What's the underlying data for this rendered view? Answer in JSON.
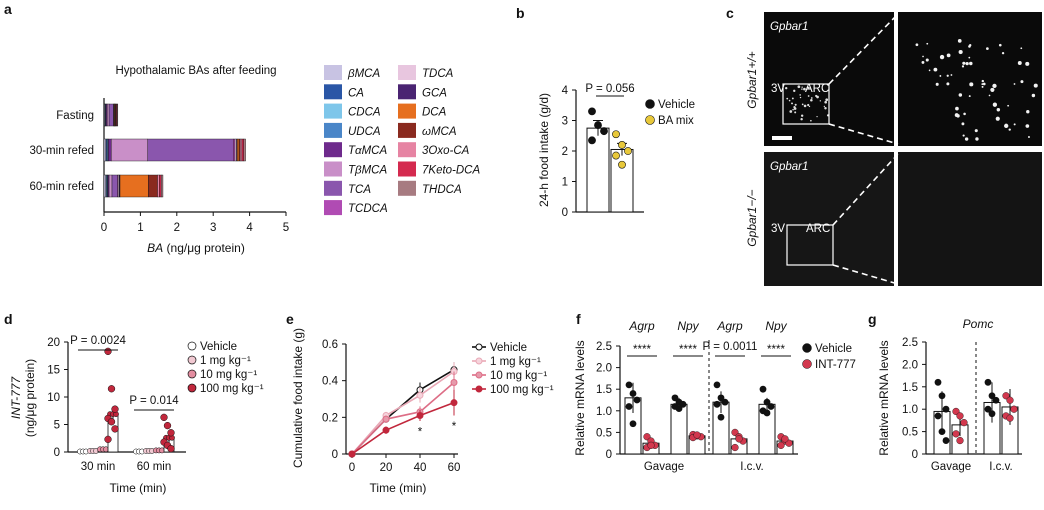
{
  "panel_labels": [
    "a",
    "b",
    "c",
    "d",
    "e",
    "f",
    "g"
  ],
  "chart_data": [
    {
      "panel": "a",
      "type": "bar",
      "orientation": "horizontal",
      "stacked": true,
      "title": "Hypothalamic BAs after feeding",
      "xlabel_italic": "BA",
      "xlabel_rest": " (ng/μg protein)",
      "xlim": [
        0,
        5
      ],
      "xticks": [
        "0",
        "1",
        "2",
        "3",
        "4",
        "5"
      ],
      "categories": [
        "Fasting",
        "30-min refed",
        "60-min refed"
      ],
      "series": [
        {
          "name": "βMCA",
          "color": "#c8c3e3",
          "values": [
            0.02,
            0.05,
            0.05
          ]
        },
        {
          "name": "CA",
          "color": "#2a56a6",
          "values": [
            0.02,
            0.03,
            0.02
          ]
        },
        {
          "name": "CDCA",
          "color": "#7ec6ea",
          "values": [
            0.01,
            0.02,
            0.02
          ]
        },
        {
          "name": "UDCA",
          "color": "#4a86c8",
          "values": [
            0.01,
            0.02,
            0.02
          ]
        },
        {
          "name": "TαMCA",
          "color": "#6e2a8c",
          "values": [
            0.03,
            0.08,
            0.03
          ]
        },
        {
          "name": "TβMCA",
          "color": "#c98fc8",
          "values": [
            0.05,
            1.0,
            0.08
          ]
        },
        {
          "name": "TCA",
          "color": "#8a56ad",
          "values": [
            0.12,
            2.35,
            0.15
          ]
        },
        {
          "name": "TCDCA",
          "color": "#b04bb3",
          "values": [
            0.01,
            0.05,
            0.02
          ]
        },
        {
          "name": "TDCA",
          "color": "#e8c6df",
          "values": [
            0.01,
            0.04,
            0.03
          ]
        },
        {
          "name": "GCA",
          "color": "#4a2472",
          "values": [
            0.01,
            0.02,
            0.02
          ]
        },
        {
          "name": "DCA",
          "color": "#e66f1f",
          "values": [
            0.02,
            0.05,
            0.78
          ]
        },
        {
          "name": "ωMCA",
          "color": "#8a2a1f",
          "values": [
            0.01,
            0.03,
            0.25
          ]
        },
        {
          "name": "3Oxo-CA",
          "color": "#e684a3",
          "values": [
            0.02,
            0.05,
            0.05
          ]
        },
        {
          "name": "7Keto-DCA",
          "color": "#d42a4f",
          "values": [
            0.02,
            0.05,
            0.05
          ]
        },
        {
          "name": "THDCA",
          "color": "#a77b81",
          "values": [
            0.02,
            0.05,
            0.05
          ]
        }
      ],
      "legend_placement": "right"
    },
    {
      "panel": "b",
      "type": "bar",
      "ylabel": "24-h food intake (g/d)",
      "ylim": [
        0,
        4
      ],
      "yticks": [
        "0",
        "1",
        "2",
        "3",
        "4"
      ],
      "categories": [
        "Vehicle",
        "BA mix"
      ],
      "series": [
        {
          "name": "Vehicle",
          "mean": 2.75,
          "sem": 0.25,
          "color": "#111111",
          "points": [
            3.3,
            2.85,
            2.65,
            2.35
          ]
        },
        {
          "name": "BA mix",
          "mean": 2.05,
          "sem": 0.2,
          "color": "#e8c83a",
          "points": [
            2.55,
            2.2,
            2.0,
            1.85,
            1.55
          ]
        }
      ],
      "annotation": "P = 0.056",
      "legend_placement": "top-right"
    },
    {
      "panel": "d",
      "type": "bar",
      "ylabel_italic": "INT-777",
      "ylabel_rest": "(ng/μg protein)",
      "xlabel": "Time (min)",
      "ylim": [
        0,
        20
      ],
      "yticks": [
        "0",
        "5",
        "10",
        "15",
        "20"
      ],
      "groups": [
        "30 min",
        "60 min"
      ],
      "series": [
        {
          "name": "Vehicle",
          "values": [
            0,
            0
          ],
          "errors": [
            0,
            0
          ]
        },
        {
          "name": "1 mg kg⁻¹",
          "values": [
            0.1,
            0.1
          ],
          "errors": [
            0.05,
            0.05
          ]
        },
        {
          "name": "10 mg kg⁻¹",
          "values": [
            0.4,
            0.2
          ],
          "errors": [
            0.2,
            0.1
          ]
        },
        {
          "name": "100 mg kg⁻¹",
          "values": [
            6.8,
            2.5
          ],
          "errors": [
            1.5,
            0.8
          ]
        }
      ],
      "points_100": [
        [
          18.3,
          11.5,
          7.8,
          6.1,
          5.5,
          4.2,
          2.3
        ],
        [
          6.3,
          4.8,
          3.5,
          1.8,
          1.2,
          0.6
        ]
      ],
      "annotations": [
        "P = 0.0024",
        "P = 0.014"
      ],
      "legend_placement": "right"
    },
    {
      "panel": "e",
      "type": "line",
      "ylabel": "Cumulative food intake (g)",
      "xlabel": "Time (min)",
      "x": [
        0,
        20,
        40,
        60
      ],
      "xticks": [
        "0",
        "20",
        "40",
        "60"
      ],
      "ylim": [
        0,
        0.6
      ],
      "yticks": [
        "0",
        "0.2",
        "0.4",
        "0.6"
      ],
      "series": [
        {
          "name": "Vehicle",
          "values": [
            0,
            0.19,
            0.35,
            0.46
          ],
          "errors": [
            0,
            0.02,
            0.04,
            0.04
          ]
        },
        {
          "name": "1 mg kg⁻¹",
          "values": [
            0,
            0.21,
            0.32,
            0.45
          ],
          "errors": [
            0,
            0.02,
            0.04,
            0.05
          ]
        },
        {
          "name": "10 mg kg⁻¹",
          "values": [
            0,
            0.19,
            0.23,
            0.39
          ],
          "errors": [
            0,
            0.02,
            0.03,
            0.06
          ]
        },
        {
          "name": "100 mg kg⁻¹",
          "values": [
            0,
            0.13,
            0.21,
            0.28
          ],
          "errors": [
            0,
            0.02,
            0.03,
            0.07
          ]
        }
      ],
      "annotations": [
        "*",
        "*"
      ],
      "legend_placement": "right"
    },
    {
      "panel": "f",
      "type": "bar",
      "ylabel": "Relative mRNA levels",
      "ylim": [
        0,
        2.5
      ],
      "yticks": [
        "0",
        "0.5",
        "1.0",
        "1.5",
        "2.0",
        "2.5"
      ],
      "gene_labels": [
        "Agrp",
        "Npy",
        "Agrp",
        "Npy"
      ],
      "group_labels": [
        "Gavage",
        "I.c.v."
      ],
      "series": [
        {
          "name": "Vehicle",
          "values": [
            1.3,
            1.15,
            1.2,
            1.15
          ],
          "errors": [
            0.35,
            0.15,
            0.25,
            0.15
          ]
        },
        {
          "name": "INT-777",
          "values": [
            0.25,
            0.42,
            0.35,
            0.3
          ],
          "errors": [
            0.05,
            0.03,
            0.08,
            0.06
          ]
        }
      ],
      "points_vehicle": [
        [
          1.6,
          1.4,
          1.25,
          1.1,
          0.7
        ],
        [
          1.3,
          1.2,
          1.15,
          1.1,
          1.05
        ],
        [
          1.6,
          1.3,
          1.2,
          1.15,
          0.85
        ],
        [
          1.5,
          1.2,
          1.1,
          1.0,
          0.95
        ]
      ],
      "points_int": [
        [
          0.4,
          0.3,
          0.2,
          0.15,
          0.2
        ],
        [
          0.45,
          0.42,
          0.4,
          0.38,
          0.44
        ],
        [
          0.5,
          0.4,
          0.3,
          0.15,
          0.35
        ],
        [
          0.4,
          0.3,
          0.25,
          0.2,
          0.35
        ]
      ],
      "annotations": [
        "****",
        "****",
        "P = 0.0011",
        "****"
      ],
      "legend_placement": "top-right"
    },
    {
      "panel": "g",
      "type": "bar",
      "title_italic": "Pomc",
      "ylabel": "Relative mRNA levels",
      "ylim": [
        0,
        2.5
      ],
      "yticks": [
        "0",
        "0.5",
        "1.0",
        "1.5",
        "2.0",
        "2.5"
      ],
      "group_labels": [
        "Gavage",
        "I.c.v."
      ],
      "series": [
        {
          "name": "Vehicle",
          "values": [
            0.95,
            1.15
          ],
          "errors": [
            0.45,
            0.45
          ]
        },
        {
          "name": "INT-777",
          "values": [
            0.65,
            1.05
          ],
          "errors": [
            0.25,
            0.4
          ]
        }
      ],
      "points_vehicle": [
        [
          1.6,
          1.3,
          1.0,
          0.85,
          0.5,
          0.3
        ],
        [
          1.6,
          1.3,
          1.2,
          1.0,
          0.9
        ]
      ],
      "points_int": [
        [
          0.95,
          0.85,
          0.7,
          0.45,
          0.3
        ],
        [
          1.3,
          1.2,
          1.0,
          0.85,
          0.8
        ]
      ]
    }
  ],
  "panel_c": {
    "top_label_italic": "Gpbar1",
    "bottom_label_italic": "Gpbar1",
    "genotype_top": "Gpbar1+/+",
    "genotype_bottom": "Gpbar1−/−",
    "region_3v": "3V",
    "region_arc": "ARC"
  }
}
